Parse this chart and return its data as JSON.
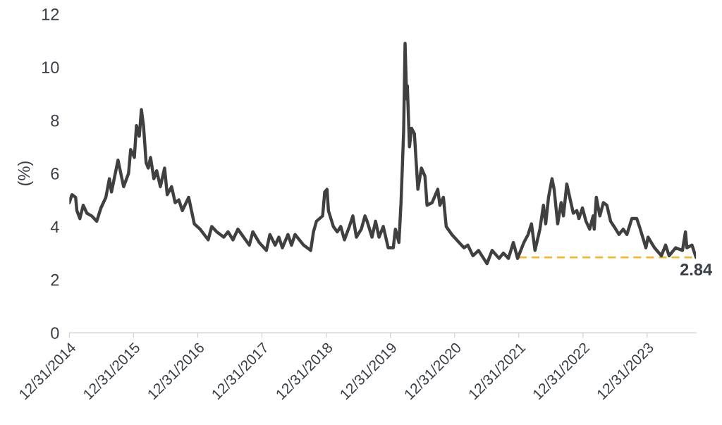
{
  "chart_data": {
    "type": "line",
    "ylabel": "(%)",
    "ylim": [
      0,
      12
    ],
    "yticks": [
      0,
      2,
      4,
      6,
      8,
      10,
      12
    ],
    "xlim": [
      "2014-12-31",
      "2024-10-04"
    ],
    "xticks": [
      {
        "value": "2014-12-31",
        "label": "12/31/2014"
      },
      {
        "value": "2015-12-31",
        "label": "12/31/2015"
      },
      {
        "value": "2016-12-31",
        "label": "12/31/2016"
      },
      {
        "value": "2017-12-31",
        "label": "12/31/2017"
      },
      {
        "value": "2018-12-31",
        "label": "12/31/2018"
      },
      {
        "value": "2019-12-31",
        "label": "12/31/2019"
      },
      {
        "value": "2020-12-31",
        "label": "12/31/2020"
      },
      {
        "value": "2021-12-31",
        "label": "12/31/2021"
      },
      {
        "value": "2022-12-31",
        "label": "12/31/2022"
      },
      {
        "value": "2023-12-31",
        "label": "12/31/2023"
      }
    ],
    "grid": false,
    "legend": false,
    "marker": "none",
    "series": [
      {
        "color": "#404040",
        "line_style": "solid",
        "x": [
          "2014-12-31",
          "2015-01-15",
          "2015-02-05",
          "2015-02-12",
          "2015-03-01",
          "2015-03-20",
          "2015-04-10",
          "2015-05-07",
          "2015-06-05",
          "2015-06-29",
          "2015-07-27",
          "2015-08-16",
          "2015-08-28",
          "2015-10-04",
          "2015-11-05",
          "2015-12-03",
          "2015-12-15",
          "2016-01-05",
          "2016-01-17",
          "2016-02-02",
          "2016-02-14",
          "2016-02-26",
          "2016-03-12",
          "2016-03-24",
          "2016-04-06",
          "2016-04-25",
          "2016-05-11",
          "2016-06-01",
          "2016-06-25",
          "2016-07-10",
          "2016-08-04",
          "2016-08-24",
          "2016-09-14",
          "2016-10-04",
          "2016-11-09",
          "2016-12-11",
          "2017-01-13",
          "2017-02-28",
          "2017-03-20",
          "2017-04-18",
          "2017-05-28",
          "2017-06-21",
          "2017-07-19",
          "2017-08-16",
          "2017-10-20",
          "2017-11-09",
          "2017-12-15",
          "2018-01-25",
          "2018-02-14",
          "2018-03-16",
          "2018-04-06",
          "2018-04-26",
          "2018-05-28",
          "2018-06-17",
          "2018-07-07",
          "2018-08-25",
          "2018-10-04",
          "2018-10-20",
          "2018-11-06",
          "2018-12-11",
          "2018-12-23",
          "2019-01-05",
          "2019-01-13",
          "2019-02-10",
          "2019-03-04",
          "2019-03-24",
          "2019-04-14",
          "2019-05-12",
          "2019-06-01",
          "2019-06-21",
          "2019-07-19",
          "2019-08-09",
          "2019-08-21",
          "2019-09-18",
          "2019-10-08",
          "2019-10-28",
          "2019-11-21",
          "2019-12-19",
          "2020-01-17",
          "2020-01-29",
          "2020-02-18",
          "2020-03-01",
          "2020-03-16",
          "2020-03-24",
          "2020-04-02",
          "2020-04-06",
          "2020-04-18",
          "2020-04-30",
          "2020-05-16",
          "2020-06-05",
          "2020-06-25",
          "2020-07-15",
          "2020-07-27",
          "2020-08-25",
          "2020-09-26",
          "2020-10-08",
          "2020-10-28",
          "2020-11-13",
          "2020-12-15",
          "2021-01-25",
          "2021-02-22",
          "2021-03-16",
          "2021-04-14",
          "2021-05-16",
          "2021-07-03",
          "2021-08-01",
          "2021-09-10",
          "2021-10-04",
          "2021-11-02",
          "2021-11-30",
          "2021-12-24",
          "2022-01-29",
          "2022-02-22",
          "2022-03-13",
          "2022-04-02",
          "2022-04-30",
          "2022-05-20",
          "2022-06-02",
          "2022-06-18",
          "2022-07-08",
          "2022-07-20",
          "2022-08-09",
          "2022-08-29",
          "2022-09-11",
          "2022-09-30",
          "2022-10-20",
          "2022-11-06",
          "2022-11-26",
          "2022-12-08",
          "2022-12-28",
          "2023-01-17",
          "2023-02-07",
          "2023-02-27",
          "2023-03-05",
          "2023-03-17",
          "2023-04-06",
          "2023-04-26",
          "2023-05-16",
          "2023-06-06",
          "2023-06-26",
          "2023-07-24",
          "2023-08-17",
          "2023-09-07",
          "2023-10-05",
          "2023-11-02",
          "2023-11-22",
          "2023-12-24",
          "2024-01-05",
          "2024-02-11",
          "2024-03-21",
          "2024-04-14",
          "2024-05-04",
          "2024-06-10",
          "2024-07-19",
          "2024-08-05",
          "2024-08-13",
          "2024-09-11",
          "2024-10-04"
        ],
        "values": [
          4.9,
          5.2,
          5.1,
          4.6,
          4.3,
          4.8,
          4.5,
          4.4,
          4.2,
          4.7,
          5.1,
          5.8,
          5.3,
          6.5,
          5.5,
          6.0,
          6.9,
          6.6,
          7.8,
          7.4,
          8.4,
          7.8,
          6.4,
          6.2,
          6.6,
          5.8,
          6.1,
          5.5,
          6.2,
          5.2,
          5.5,
          4.9,
          5.0,
          4.6,
          5.1,
          4.1,
          3.9,
          3.5,
          4.0,
          3.8,
          3.6,
          3.8,
          3.5,
          3.9,
          3.3,
          3.8,
          3.4,
          3.1,
          3.7,
          3.3,
          3.6,
          3.2,
          3.7,
          3.3,
          3.7,
          3.3,
          3.1,
          3.8,
          4.2,
          4.4,
          5.3,
          5.4,
          4.6,
          4.0,
          3.8,
          4.0,
          3.5,
          4.0,
          4.4,
          3.6,
          3.9,
          4.4,
          4.2,
          3.6,
          4.2,
          3.6,
          4.0,
          3.2,
          3.2,
          3.9,
          3.4,
          4.9,
          7.6,
          10.9,
          8.8,
          9.3,
          7.0,
          7.7,
          7.5,
          5.4,
          6.2,
          5.9,
          4.8,
          4.9,
          5.4,
          4.8,
          5.1,
          4.0,
          3.7,
          3.4,
          3.2,
          3.3,
          2.9,
          3.1,
          2.6,
          3.1,
          2.8,
          3.0,
          2.8,
          3.4,
          2.8,
          3.4,
          3.7,
          4.1,
          3.1,
          3.9,
          4.8,
          4.1,
          5.1,
          5.8,
          5.4,
          4.1,
          4.9,
          4.4,
          5.6,
          5.0,
          4.5,
          4.6,
          4.3,
          4.7,
          4.2,
          3.9,
          4.4,
          3.9,
          5.1,
          4.4,
          4.9,
          4.8,
          4.2,
          4.0,
          3.7,
          3.9,
          3.7,
          4.3,
          4.3,
          3.9,
          3.2,
          3.6,
          3.2,
          2.9,
          3.3,
          2.9,
          3.2,
          3.1,
          3.8,
          3.2,
          3.3,
          2.84
        ]
      },
      {
        "color": "#f5b82e",
        "line_style": "dashed",
        "x": [
          "2021-12-31",
          "2024-10-04"
        ],
        "values": [
          2.84,
          2.84
        ]
      }
    ],
    "annotations": [
      {
        "text": "2.84",
        "x": "2024-10-04",
        "y": 2.84
      }
    ]
  }
}
